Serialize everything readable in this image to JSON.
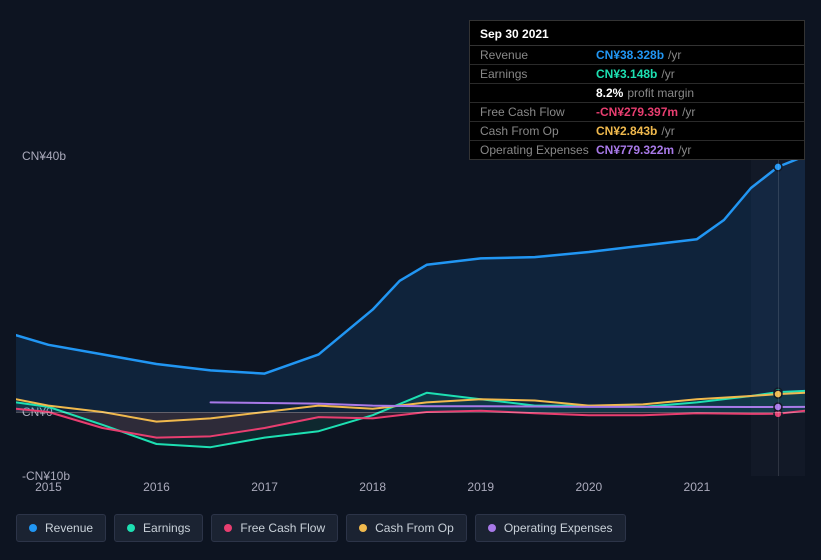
{
  "tooltip": {
    "date": "Sep 30 2021",
    "rows": [
      {
        "label": "Revenue",
        "value": "CN¥38.328b",
        "unit": "/yr",
        "color": "#2196f3"
      },
      {
        "label": "Earnings",
        "value": "CN¥3.148b",
        "unit": "/yr",
        "color": "#1de0b2"
      },
      {
        "label": "",
        "value": "8.2%",
        "unit": "profit margin",
        "color": "#ffffff"
      },
      {
        "label": "Free Cash Flow",
        "value": "-CN¥279.397m",
        "unit": "/yr",
        "color": "#e83e70"
      },
      {
        "label": "Cash From Op",
        "value": "CN¥2.843b",
        "unit": "/yr",
        "color": "#f0b94d"
      },
      {
        "label": "Operating Expenses",
        "value": "CN¥779.322m",
        "unit": "/yr",
        "color": "#a879e8"
      }
    ]
  },
  "chart": {
    "type": "area-line",
    "background": "#0d1421",
    "grid_color": "rgba(255,255,255,0.08)",
    "ylim": [
      -10,
      40
    ],
    "ytick_labels": [
      {
        "v": 40,
        "label": "CN¥40b"
      },
      {
        "v": 0,
        "label": "CN¥0"
      },
      {
        "v": -10,
        "label": "-CN¥10b"
      }
    ],
    "xlim": [
      2014.7,
      2022.0
    ],
    "xtick_labels": [
      "2015",
      "2016",
      "2017",
      "2018",
      "2019",
      "2020",
      "2021"
    ],
    "hover_x": 2021.75,
    "hover_region": [
      2021.5,
      2022.0
    ],
    "series": [
      {
        "name": "Revenue",
        "color": "#2196f3",
        "fill": "rgba(33,150,243,0.12)",
        "width": 2.5,
        "data": [
          [
            2014.7,
            12.0
          ],
          [
            2015.0,
            10.5
          ],
          [
            2015.5,
            9.0
          ],
          [
            2016.0,
            7.5
          ],
          [
            2016.5,
            6.5
          ],
          [
            2017.0,
            6.0
          ],
          [
            2017.5,
            9.0
          ],
          [
            2018.0,
            16.0
          ],
          [
            2018.25,
            20.5
          ],
          [
            2018.5,
            23.0
          ],
          [
            2019.0,
            24.0
          ],
          [
            2019.5,
            24.2
          ],
          [
            2020.0,
            25.0
          ],
          [
            2020.5,
            26.0
          ],
          [
            2021.0,
            27.0
          ],
          [
            2021.25,
            30.0
          ],
          [
            2021.5,
            35.0
          ],
          [
            2021.75,
            38.3
          ],
          [
            2022.0,
            40.0
          ]
        ]
      },
      {
        "name": "Earnings",
        "color": "#1de0b2",
        "fill": "rgba(29,224,178,0.10)",
        "width": 2,
        "data": [
          [
            2014.7,
            1.5
          ],
          [
            2015.0,
            0.8
          ],
          [
            2015.5,
            -2.0
          ],
          [
            2016.0,
            -5.0
          ],
          [
            2016.5,
            -5.5
          ],
          [
            2017.0,
            -4.0
          ],
          [
            2017.5,
            -3.0
          ],
          [
            2018.0,
            -0.5
          ],
          [
            2018.5,
            3.0
          ],
          [
            2019.0,
            2.0
          ],
          [
            2019.5,
            1.0
          ],
          [
            2020.0,
            1.0
          ],
          [
            2020.5,
            0.8
          ],
          [
            2021.0,
            1.5
          ],
          [
            2021.5,
            2.5
          ],
          [
            2021.75,
            3.1
          ],
          [
            2022.0,
            3.3
          ]
        ]
      },
      {
        "name": "Free Cash Flow",
        "color": "#e83e70",
        "fill": "rgba(232,62,112,0.15)",
        "width": 2,
        "data": [
          [
            2014.7,
            0.5
          ],
          [
            2015.0,
            0.0
          ],
          [
            2015.5,
            -2.5
          ],
          [
            2016.0,
            -4.0
          ],
          [
            2016.5,
            -3.8
          ],
          [
            2017.0,
            -2.5
          ],
          [
            2017.5,
            -0.8
          ],
          [
            2018.0,
            -1.0
          ],
          [
            2018.5,
            0.0
          ],
          [
            2019.0,
            0.2
          ],
          [
            2019.5,
            -0.2
          ],
          [
            2020.0,
            -0.5
          ],
          [
            2020.5,
            -0.5
          ],
          [
            2021.0,
            -0.2
          ],
          [
            2021.5,
            -0.3
          ],
          [
            2021.75,
            -0.28
          ],
          [
            2022.0,
            0.2
          ]
        ]
      },
      {
        "name": "Cash From Op",
        "color": "#f0b94d",
        "fill": "none",
        "width": 2,
        "data": [
          [
            2014.7,
            2.0
          ],
          [
            2015.0,
            1.0
          ],
          [
            2015.5,
            0.0
          ],
          [
            2016.0,
            -1.5
          ],
          [
            2016.5,
            -1.0
          ],
          [
            2017.0,
            0.0
          ],
          [
            2017.5,
            1.0
          ],
          [
            2018.0,
            0.5
          ],
          [
            2018.5,
            1.5
          ],
          [
            2019.0,
            2.0
          ],
          [
            2019.5,
            1.8
          ],
          [
            2020.0,
            1.0
          ],
          [
            2020.5,
            1.2
          ],
          [
            2021.0,
            2.0
          ],
          [
            2021.5,
            2.5
          ],
          [
            2021.75,
            2.8
          ],
          [
            2022.0,
            3.0
          ]
        ]
      },
      {
        "name": "Operating Expenses",
        "color": "#a879e8",
        "fill": "none",
        "width": 2,
        "data": [
          [
            2016.5,
            1.5
          ],
          [
            2017.0,
            1.4
          ],
          [
            2017.5,
            1.3
          ],
          [
            2018.0,
            1.0
          ],
          [
            2018.5,
            0.9
          ],
          [
            2019.0,
            0.9
          ],
          [
            2019.5,
            0.85
          ],
          [
            2020.0,
            0.8
          ],
          [
            2020.5,
            0.8
          ],
          [
            2021.0,
            0.8
          ],
          [
            2021.5,
            0.78
          ],
          [
            2021.75,
            0.78
          ],
          [
            2022.0,
            0.8
          ]
        ]
      }
    ]
  },
  "legend": [
    {
      "label": "Revenue",
      "color": "#2196f3"
    },
    {
      "label": "Earnings",
      "color": "#1de0b2"
    },
    {
      "label": "Free Cash Flow",
      "color": "#e83e70"
    },
    {
      "label": "Cash From Op",
      "color": "#f0b94d"
    },
    {
      "label": "Operating Expenses",
      "color": "#a879e8"
    }
  ]
}
